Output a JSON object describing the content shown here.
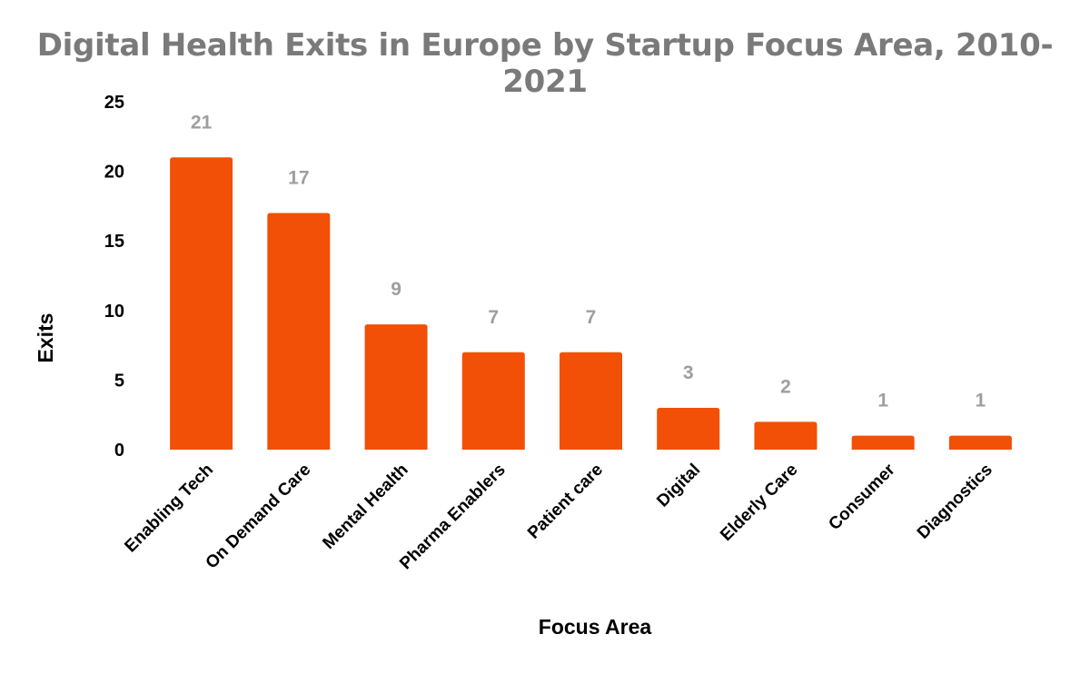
{
  "chart_data": {
    "type": "bar",
    "title": "Digital Health Exits in Europe by Startup Focus Area, 2010-2021",
    "xlabel": "Focus Area",
    "ylabel": "Exits",
    "categories": [
      "Enabling Tech",
      "On Demand Care",
      "Mental Health",
      "Pharma Enablers",
      "Patient care",
      "Digital",
      "Elderly Care",
      "Consumer",
      "Diagnostics"
    ],
    "values": [
      21,
      17,
      9,
      7,
      7,
      3,
      2,
      1,
      1
    ],
    "ylim": [
      0,
      25
    ],
    "yticks": [
      0,
      5,
      10,
      15,
      20,
      25
    ],
    "grid": false,
    "legend": "none",
    "bar_color": "#f25006",
    "label_color": "#9e9e9e"
  }
}
